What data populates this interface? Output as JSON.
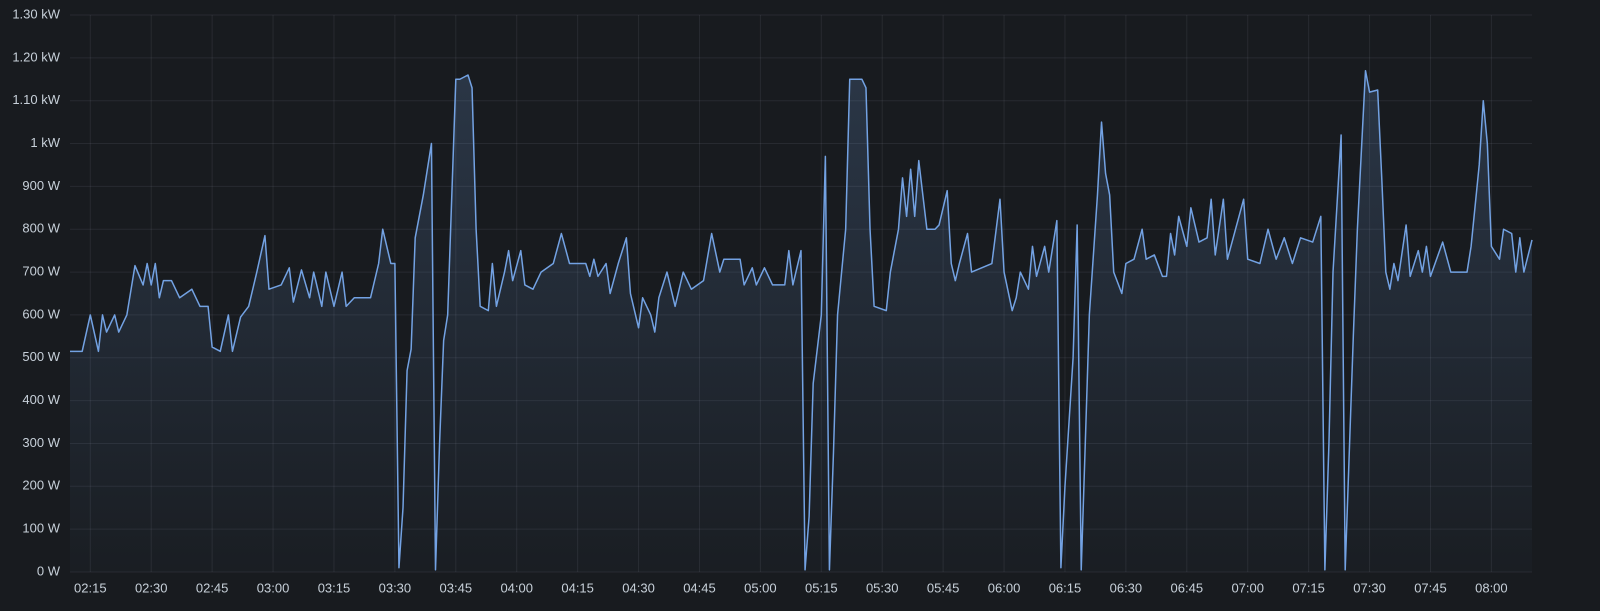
{
  "chart_data": {
    "type": "area",
    "x": [
      "02:10",
      "02:13",
      "02:15",
      "02:17",
      "02:18",
      "02:19",
      "02:21",
      "02:22",
      "02:24",
      "02:26",
      "02:28",
      "02:29",
      "02:30",
      "02:31",
      "02:32",
      "02:33",
      "02:35",
      "02:37",
      "02:40",
      "02:42",
      "02:44",
      "02:45",
      "02:47",
      "02:49",
      "02:50",
      "02:52",
      "02:54",
      "02:56",
      "02:58",
      "02:59",
      "03:02",
      "03:04",
      "03:05",
      "03:07",
      "03:09",
      "03:10",
      "03:12",
      "03:13",
      "03:15",
      "03:17",
      "03:18",
      "03:20",
      "03:24",
      "03:26",
      "03:27",
      "03:29",
      "03:30",
      "03:31",
      "03:32",
      "03:33",
      "03:34",
      "03:35",
      "03:37",
      "03:39",
      "03:40",
      "03:41",
      "03:42",
      "03:43",
      "03:45",
      "03:46",
      "03:48",
      "03:49",
      "03:50",
      "03:51",
      "03:53",
      "03:54",
      "03:55",
      "03:57",
      "03:58",
      "03:59",
      "04:01",
      "04:02",
      "04:04",
      "04:06",
      "04:09",
      "04:11",
      "04:13",
      "04:17",
      "04:18",
      "04:19",
      "04:20",
      "04:22",
      "04:23",
      "04:25",
      "04:27",
      "04:28",
      "04:30",
      "04:31",
      "04:33",
      "04:34",
      "04:35",
      "04:37",
      "04:39",
      "04:41",
      "04:43",
      "04:46",
      "04:48",
      "04:50",
      "04:51",
      "04:55",
      "04:56",
      "04:58",
      "04:59",
      "05:01",
      "05:03",
      "05:06",
      "05:07",
      "05:08",
      "05:10",
      "05:11",
      "05:12",
      "05:13",
      "05:15",
      "05:16",
      "05:17",
      "05:18",
      "05:19",
      "05:21",
      "05:22",
      "05:25",
      "05:26",
      "05:27",
      "05:28",
      "05:31",
      "05:32",
      "05:34",
      "05:35",
      "05:36",
      "05:37",
      "05:38",
      "05:39",
      "05:41",
      "05:43",
      "05:44",
      "05:46",
      "05:47",
      "05:48",
      "05:49",
      "05:51",
      "05:52",
      "05:57",
      "05:59",
      "06:00",
      "06:02",
      "06:03",
      "06:04",
      "06:06",
      "06:07",
      "06:08",
      "06:10",
      "06:11",
      "06:13",
      "06:14",
      "06:15",
      "06:17",
      "06:18",
      "06:19",
      "06:20",
      "06:21",
      "06:23",
      "06:24",
      "06:25",
      "06:26",
      "06:27",
      "06:29",
      "06:30",
      "06:32",
      "06:34",
      "06:35",
      "06:37",
      "06:39",
      "06:40",
      "06:41",
      "06:42",
      "06:43",
      "06:45",
      "06:46",
      "06:48",
      "06:50",
      "06:51",
      "06:52",
      "06:54",
      "06:55",
      "06:57",
      "06:59",
      "07:00",
      "07:03",
      "07:05",
      "07:07",
      "07:09",
      "07:11",
      "07:13",
      "07:16",
      "07:18",
      "07:19",
      "07:20",
      "07:21",
      "07:23",
      "07:24",
      "07:26",
      "07:27",
      "07:29",
      "07:30",
      "07:32",
      "07:33",
      "07:34",
      "07:35",
      "07:36",
      "07:37",
      "07:39",
      "07:40",
      "07:42",
      "07:43",
      "07:44",
      "07:45",
      "07:48",
      "07:50",
      "07:54",
      "07:55",
      "07:57",
      "07:58",
      "07:59",
      "08:00",
      "08:02",
      "08:03",
      "08:05",
      "08:06",
      "08:07",
      "08:08",
      "08:10"
    ],
    "series": [
      {
        "color": "#73a2e3",
        "values": [
          515,
          515,
          600,
          515,
          600,
          560,
          600,
          560,
          600,
          715,
          670,
          720,
          670,
          720,
          640,
          680,
          680,
          640,
          660,
          620,
          620,
          525,
          515,
          600,
          515,
          595,
          620,
          700,
          785,
          660,
          670,
          710,
          630,
          705,
          640,
          700,
          620,
          700,
          620,
          700,
          620,
          640,
          640,
          720,
          800,
          720,
          720,
          10,
          150,
          470,
          520,
          780,
          880,
          1000,
          5,
          300,
          540,
          600,
          1150,
          1150,
          1160,
          1130,
          800,
          620,
          610,
          720,
          620,
          700,
          750,
          680,
          750,
          670,
          660,
          700,
          720,
          790,
          720,
          720,
          690,
          730,
          690,
          720,
          650,
          720,
          780,
          650,
          570,
          640,
          600,
          560,
          640,
          700,
          620,
          700,
          660,
          680,
          790,
          700,
          730,
          730,
          670,
          710,
          670,
          710,
          670,
          670,
          750,
          670,
          750,
          5,
          130,
          440,
          600,
          970,
          5,
          280,
          600,
          800,
          1150,
          1150,
          1130,
          800,
          620,
          610,
          700,
          800,
          920,
          830,
          940,
          830,
          960,
          800,
          800,
          810,
          890,
          720,
          680,
          720,
          790,
          700,
          720,
          870,
          700,
          610,
          640,
          700,
          660,
          760,
          690,
          760,
          700,
          820,
          10,
          200,
          500,
          810,
          5,
          300,
          600,
          880,
          1050,
          930,
          880,
          700,
          650,
          720,
          730,
          800,
          730,
          740,
          690,
          690,
          790,
          740,
          830,
          760,
          850,
          770,
          780,
          870,
          740,
          870,
          730,
          800,
          870,
          730,
          720,
          800,
          730,
          780,
          720,
          780,
          770,
          830,
          5,
          300,
          700,
          1020,
          5,
          550,
          800,
          1170,
          1120,
          1125,
          920,
          700,
          660,
          720,
          680,
          810,
          690,
          750,
          700,
          760,
          690,
          770,
          700,
          700,
          760,
          950,
          1100,
          1000,
          760,
          730,
          800,
          790,
          700,
          780,
          700,
          775
        ]
      }
    ],
    "xlim": [
      "02:10",
      "08:10"
    ],
    "xticks": [
      "02:15",
      "02:30",
      "02:45",
      "03:00",
      "03:15",
      "03:30",
      "03:45",
      "04:00",
      "04:15",
      "04:30",
      "04:45",
      "05:00",
      "05:15",
      "05:30",
      "05:45",
      "06:00",
      "06:15",
      "06:30",
      "06:45",
      "07:00",
      "07:15",
      "07:30",
      "07:45",
      "08:00"
    ],
    "ylim": [
      0,
      1300
    ],
    "yticks": [
      {
        "value": 0,
        "label": "0 W"
      },
      {
        "value": 100,
        "label": "100 W"
      },
      {
        "value": 200,
        "label": "200 W"
      },
      {
        "value": 300,
        "label": "300 W"
      },
      {
        "value": 400,
        "label": "400 W"
      },
      {
        "value": 500,
        "label": "500 W"
      },
      {
        "value": 600,
        "label": "600 W"
      },
      {
        "value": 700,
        "label": "700 W"
      },
      {
        "value": 800,
        "label": "800 W"
      },
      {
        "value": 900,
        "label": "900 W"
      },
      {
        "value": 1000,
        "label": "1 kW"
      },
      {
        "value": 1100,
        "label": "1.10 kW"
      },
      {
        "value": 1200,
        "label": "1.20 kW"
      },
      {
        "value": 1300,
        "label": "1.30 kW"
      }
    ],
    "grid": true
  }
}
